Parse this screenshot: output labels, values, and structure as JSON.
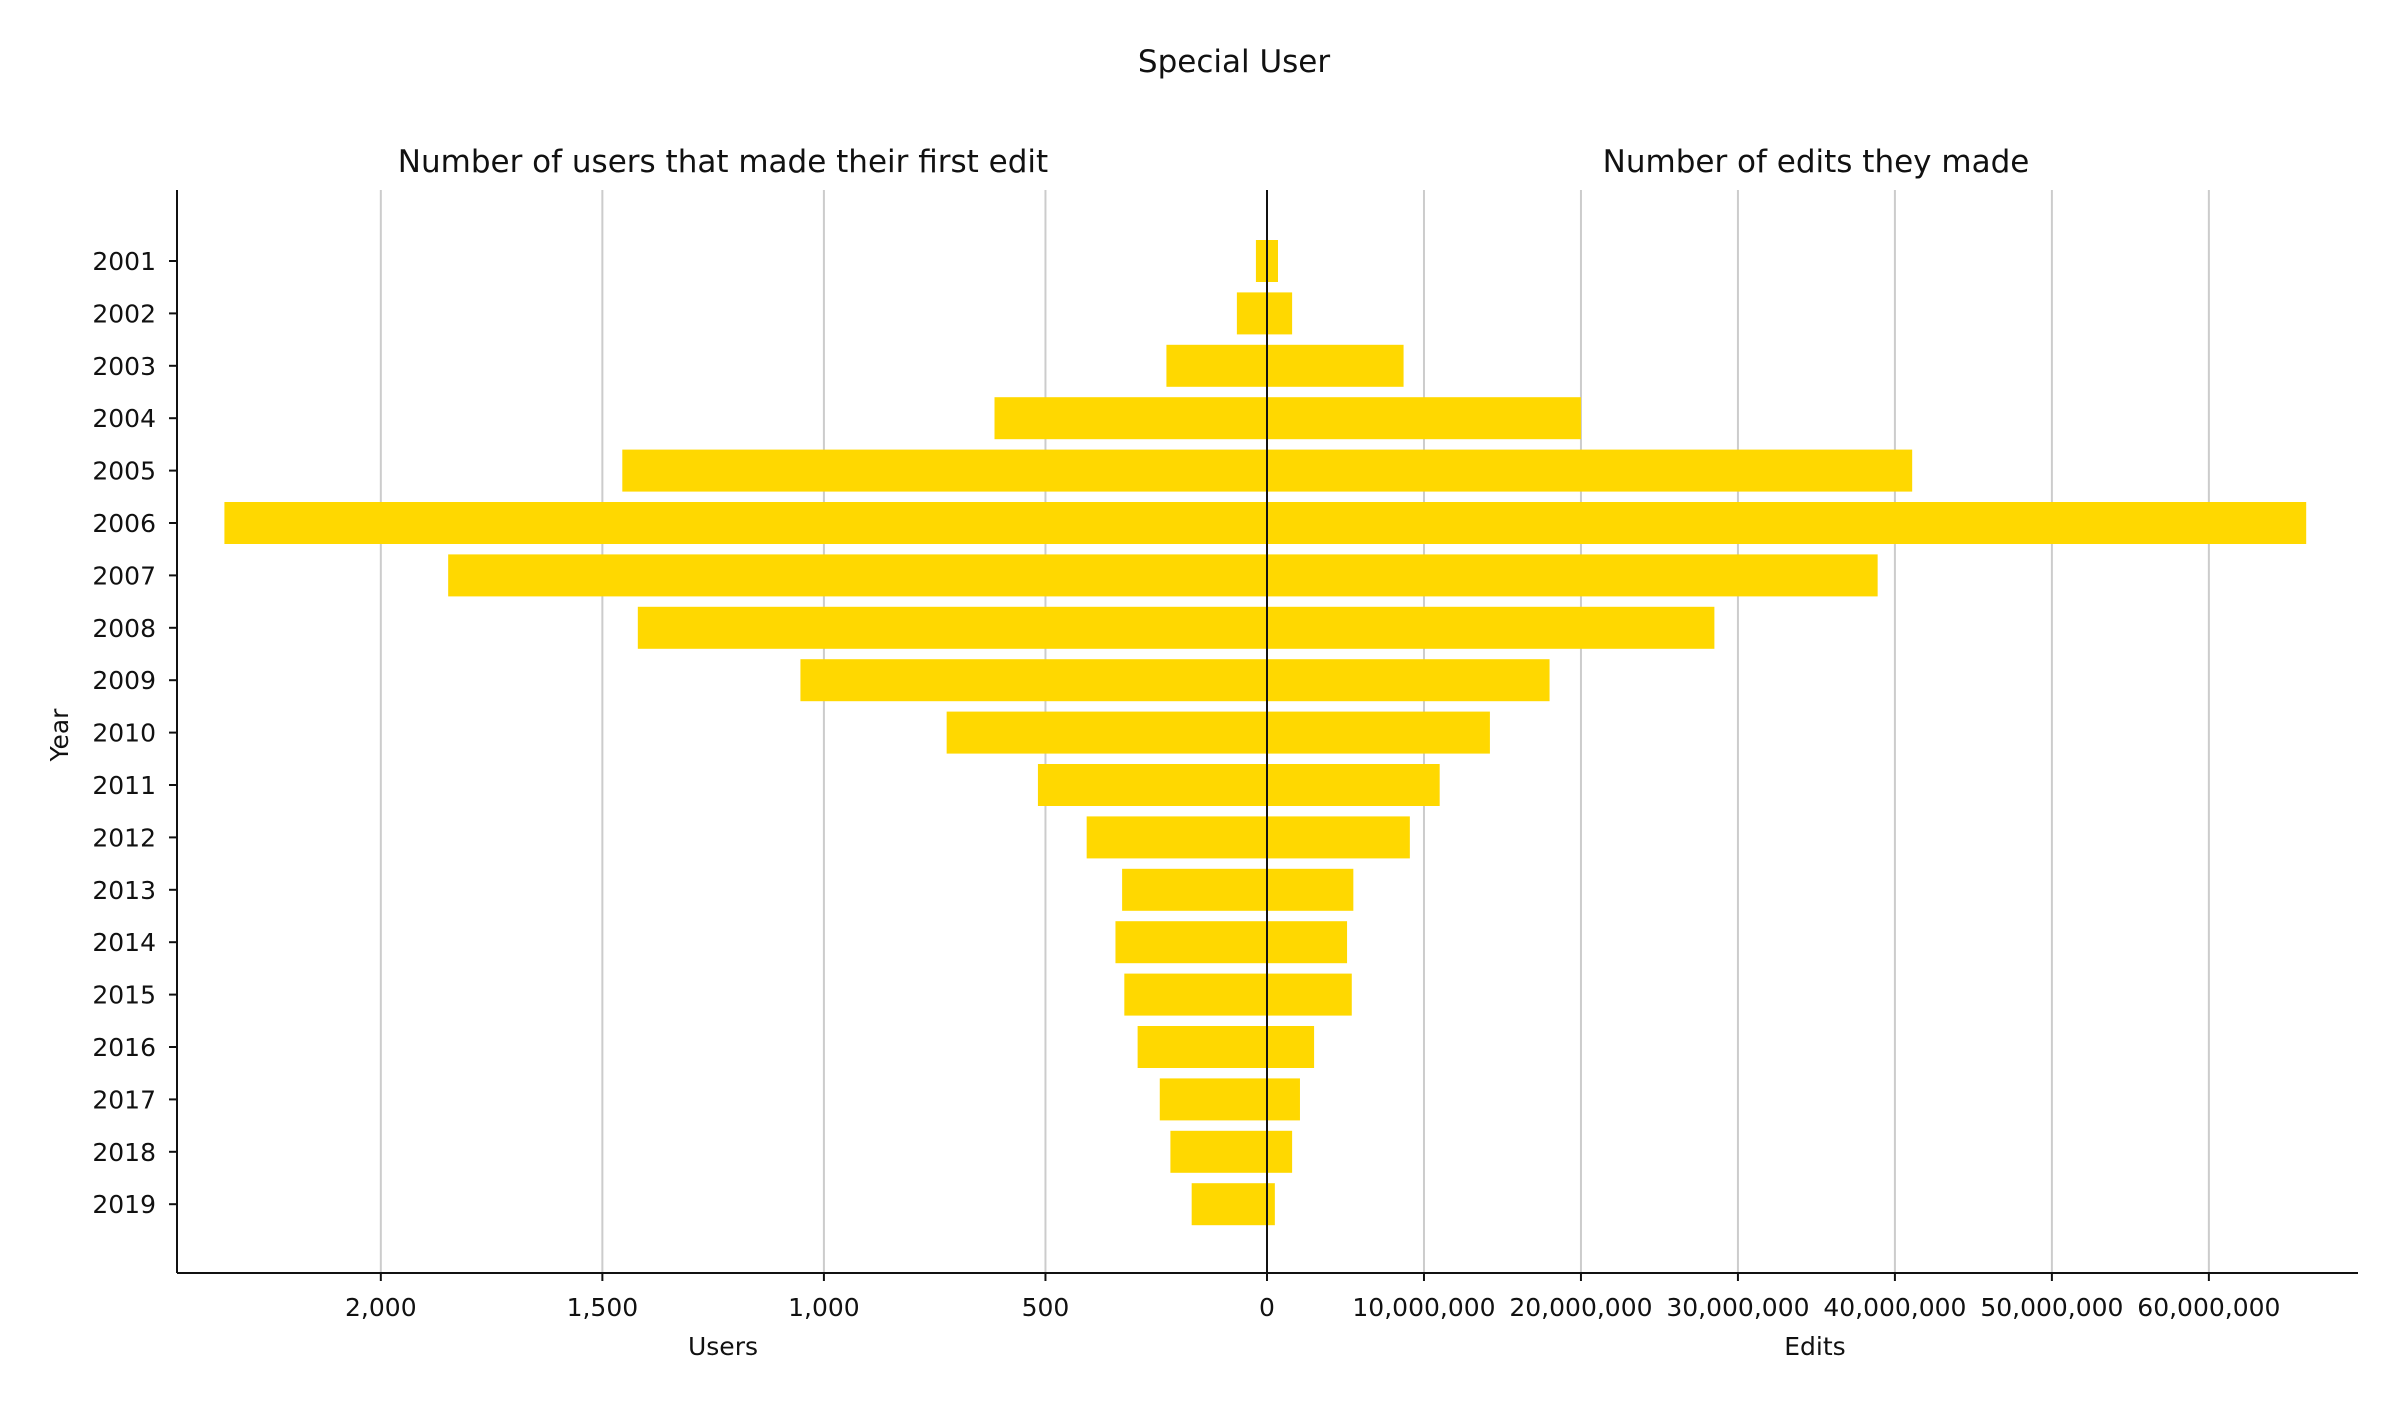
{
  "chart_data": {
    "type": "bar",
    "layout": "diverging-horizontal",
    "title": "Special User",
    "ylabel": "Year",
    "bar_color": "#FFD800",
    "gridlines": true,
    "categories": [
      "2001",
      "2002",
      "2003",
      "2004",
      "2005",
      "2006",
      "2007",
      "2008",
      "2009",
      "2010",
      "2011",
      "2012",
      "2013",
      "2014",
      "2015",
      "2016",
      "2017",
      "2018",
      "2019"
    ],
    "left": {
      "subtitle": "Number of users that made their first edit",
      "xlabel": "Users",
      "xlim": [
        2460,
        0
      ],
      "ticks": [
        2000,
        1500,
        1000,
        500,
        0
      ],
      "tick_labels": [
        "2,000",
        "1,500",
        "1,000",
        "500",
        "0"
      ],
      "series": [
        {
          "values": [
            25,
            68,
            227,
            615,
            1455,
            2353,
            1848,
            1420,
            1053,
            723,
            517,
            407,
            327,
            342,
            322,
            292,
            242,
            218,
            170
          ]
        }
      ]
    },
    "right": {
      "subtitle": "Number of edits they made",
      "xlabel": "Edits",
      "xlim": [
        0,
        69500000
      ],
      "ticks": [
        10000000,
        20000000,
        30000000,
        40000000,
        50000000,
        60000000
      ],
      "tick_labels": [
        "10,000,000",
        "20,000,000",
        "30,000,000",
        "40,000,000",
        "50,000,000",
        "60,000,000"
      ],
      "series": [
        {
          "values": [
            700000,
            1600000,
            8700000,
            20000000,
            41100000,
            66200000,
            38900000,
            28500000,
            18000000,
            14200000,
            11000000,
            9100000,
            5500000,
            5100000,
            5400000,
            3000000,
            2100000,
            1600000,
            500000
          ]
        }
      ]
    }
  }
}
